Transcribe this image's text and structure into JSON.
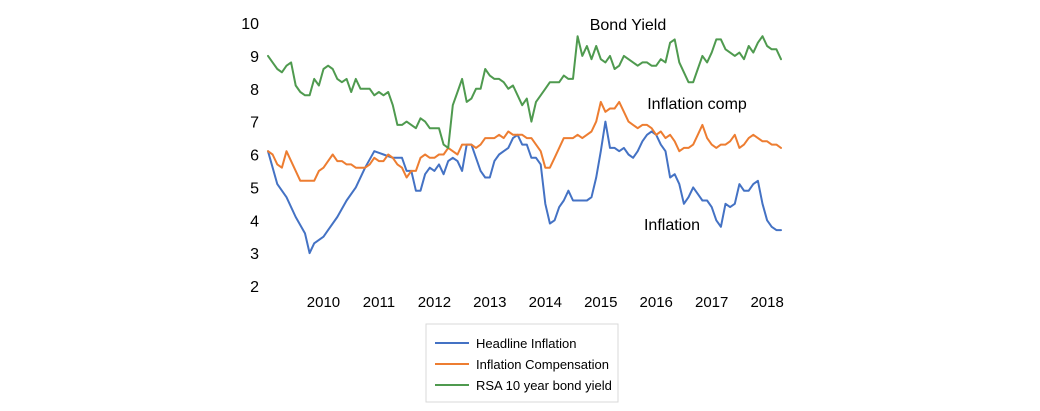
{
  "chart_data": {
    "type": "line",
    "title": "",
    "xlabel": "",
    "ylabel": "",
    "ylim": [
      2,
      10
    ],
    "yticks": [
      2,
      3,
      4,
      5,
      6,
      7,
      8,
      9,
      10
    ],
    "xlim": [
      2009.5,
      2018.75
    ],
    "year_labels": [
      "2010",
      "2011",
      "2012",
      "2013",
      "2014",
      "2015",
      "2016",
      "2017",
      "2018"
    ],
    "grid": false,
    "legend_position": "bottom",
    "annotations": [
      {
        "text": "Bond Yield",
        "series": "RSA 10 year bond yield"
      },
      {
        "text": "Inflation comp",
        "series": "Inflation Compensation"
      },
      {
        "text": "Inflation",
        "series": "Headline Inflation"
      }
    ],
    "series": [
      {
        "name": "Headline Inflation",
        "color": "#4472c4",
        "x": [
          2009.5,
          2009.667,
          2009.833,
          2010.0,
          2010.167,
          2010.25,
          2010.333,
          2010.5,
          2010.583,
          2010.75,
          2010.917,
          2011.083,
          2011.25,
          2011.417,
          2011.583,
          2011.75,
          2011.917,
          2012.0,
          2012.083,
          2012.167,
          2012.25,
          2012.333,
          2012.417,
          2012.5,
          2012.583,
          2012.667,
          2012.75,
          2012.833,
          2012.917,
          2013.0,
          2013.083,
          2013.167,
          2013.25,
          2013.333,
          2013.417,
          2013.5,
          2013.583,
          2013.667,
          2013.75,
          2013.833,
          2013.917,
          2014.0,
          2014.083,
          2014.167,
          2014.25,
          2014.333,
          2014.417,
          2014.5,
          2014.583,
          2014.667,
          2014.75,
          2014.833,
          2014.917,
          2015.0,
          2015.083,
          2015.25,
          2015.333,
          2015.417,
          2015.5,
          2015.583,
          2015.667,
          2015.75,
          2015.833,
          2015.917,
          2016.0,
          2016.083,
          2016.167,
          2016.25,
          2016.333,
          2016.417,
          2016.5,
          2016.583,
          2016.667,
          2016.75,
          2016.833,
          2016.917,
          2017.0,
          2017.083,
          2017.167,
          2017.25,
          2017.333,
          2017.417,
          2017.5,
          2017.583,
          2017.667,
          2017.75,
          2017.833,
          2017.917,
          2018.0,
          2018.083,
          2018.167,
          2018.25,
          2018.333,
          2018.417,
          2018.5,
          2018.583,
          2018.667,
          2018.75
        ],
        "values": [
          6.1,
          5.1,
          4.7,
          4.1,
          3.6,
          3.0,
          3.3,
          3.5,
          3.7,
          4.1,
          4.6,
          5.0,
          5.6,
          6.1,
          6.0,
          5.9,
          5.9,
          5.5,
          5.5,
          4.9,
          4.9,
          5.4,
          5.6,
          5.5,
          5.7,
          5.4,
          5.8,
          5.9,
          5.8,
          5.5,
          6.3,
          6.3,
          5.9,
          5.5,
          5.3,
          5.3,
          5.8,
          6.0,
          6.1,
          6.2,
          6.5,
          6.6,
          6.3,
          6.3,
          5.9,
          5.9,
          5.7,
          4.5,
          3.9,
          4.0,
          4.4,
          4.6,
          4.9,
          4.6,
          4.6,
          4.6,
          4.7,
          5.3,
          6.1,
          7.0,
          6.2,
          6.2,
          6.1,
          6.2,
          6.0,
          5.9,
          6.1,
          6.4,
          6.6,
          6.7,
          6.6,
          6.3,
          6.1,
          5.3,
          5.4,
          5.1,
          4.5,
          4.7,
          5.0,
          4.8,
          4.6,
          4.6,
          4.4,
          4.0,
          3.8,
          4.5,
          4.4,
          4.5,
          5.1,
          4.9,
          4.9,
          5.1,
          5.2,
          4.5,
          4.0,
          3.8,
          3.7,
          3.7
        ]
      },
      {
        "name": "Inflation Compensation",
        "color": "#ed7d31",
        "x": [
          2009.5,
          2009.583,
          2009.667,
          2009.75,
          2009.833,
          2009.917,
          2010.0,
          2010.083,
          2010.167,
          2010.25,
          2010.333,
          2010.417,
          2010.5,
          2010.583,
          2010.667,
          2010.75,
          2010.833,
          2010.917,
          2011.0,
          2011.083,
          2011.167,
          2011.25,
          2011.333,
          2011.417,
          2011.5,
          2011.583,
          2011.667,
          2011.75,
          2011.833,
          2011.917,
          2012.0,
          2012.083,
          2012.167,
          2012.25,
          2012.333,
          2012.417,
          2012.5,
          2012.583,
          2012.667,
          2012.75,
          2012.833,
          2012.917,
          2013.0,
          2013.083,
          2013.167,
          2013.25,
          2013.333,
          2013.417,
          2013.5,
          2013.583,
          2013.667,
          2013.75,
          2013.833,
          2013.917,
          2014.0,
          2014.083,
          2014.167,
          2014.25,
          2014.333,
          2014.417,
          2014.5,
          2014.583,
          2014.667,
          2014.75,
          2014.833,
          2014.917,
          2015.0,
          2015.083,
          2015.167,
          2015.25,
          2015.333,
          2015.417,
          2015.5,
          2015.583,
          2015.667,
          2015.75,
          2015.833,
          2015.917,
          2016.0,
          2016.083,
          2016.167,
          2016.25,
          2016.333,
          2016.417,
          2016.5,
          2016.583,
          2016.667,
          2016.75,
          2016.833,
          2016.917,
          2017.0,
          2017.083,
          2017.167,
          2017.25,
          2017.333,
          2017.417,
          2017.5,
          2017.583,
          2017.667,
          2017.75,
          2017.833,
          2017.917,
          2018.0,
          2018.083,
          2018.167,
          2018.25,
          2018.333,
          2018.417,
          2018.5,
          2018.583,
          2018.667,
          2018.75
        ],
        "values": [
          6.1,
          6.0,
          5.7,
          5.6,
          6.1,
          5.8,
          5.5,
          5.2,
          5.2,
          5.2,
          5.2,
          5.5,
          5.6,
          5.8,
          6.0,
          5.8,
          5.8,
          5.7,
          5.7,
          5.6,
          5.6,
          5.6,
          5.7,
          5.9,
          5.8,
          5.8,
          6.0,
          5.9,
          5.7,
          5.6,
          5.3,
          5.5,
          5.5,
          5.9,
          6.0,
          5.9,
          5.9,
          6.0,
          6.0,
          6.2,
          6.1,
          6.0,
          6.3,
          6.3,
          6.3,
          6.2,
          6.3,
          6.5,
          6.5,
          6.5,
          6.6,
          6.5,
          6.7,
          6.6,
          6.6,
          6.6,
          6.5,
          6.5,
          6.3,
          6.1,
          5.6,
          5.6,
          5.9,
          6.2,
          6.5,
          6.5,
          6.5,
          6.6,
          6.5,
          6.6,
          6.7,
          7.0,
          7.6,
          7.3,
          7.4,
          7.4,
          7.6,
          7.3,
          7.0,
          6.9,
          6.8,
          6.9,
          6.9,
          6.8,
          6.6,
          6.7,
          6.5,
          6.6,
          6.4,
          6.1,
          6.2,
          6.2,
          6.3,
          6.6,
          6.9,
          6.5,
          6.3,
          6.2,
          6.3,
          6.3,
          6.4,
          6.6,
          6.2,
          6.3,
          6.5,
          6.6,
          6.5,
          6.4,
          6.4,
          6.3,
          6.3,
          6.2
        ]
      },
      {
        "name": "RSA 10 year bond yield",
        "color": "#4f9a4f",
        "x": [
          2009.5,
          2009.583,
          2009.667,
          2009.75,
          2009.833,
          2009.917,
          2010.0,
          2010.083,
          2010.167,
          2010.25,
          2010.333,
          2010.417,
          2010.5,
          2010.583,
          2010.667,
          2010.75,
          2010.833,
          2010.917,
          2011.0,
          2011.083,
          2011.167,
          2011.25,
          2011.333,
          2011.417,
          2011.5,
          2011.583,
          2011.667,
          2011.75,
          2011.833,
          2011.917,
          2012.0,
          2012.083,
          2012.167,
          2012.25,
          2012.333,
          2012.417,
          2012.5,
          2012.583,
          2012.667,
          2012.75,
          2012.833,
          2012.917,
          2013.0,
          2013.083,
          2013.167,
          2013.25,
          2013.333,
          2013.417,
          2013.5,
          2013.583,
          2013.667,
          2013.75,
          2013.833,
          2013.917,
          2014.0,
          2014.083,
          2014.167,
          2014.25,
          2014.333,
          2014.417,
          2014.5,
          2014.583,
          2014.667,
          2014.75,
          2014.833,
          2014.917,
          2015.0,
          2015.083,
          2015.167,
          2015.25,
          2015.333,
          2015.417,
          2015.5,
          2015.583,
          2015.667,
          2015.75,
          2015.833,
          2015.917,
          2016.0,
          2016.083,
          2016.167,
          2016.25,
          2016.333,
          2016.417,
          2016.5,
          2016.583,
          2016.667,
          2016.75,
          2016.833,
          2016.917,
          2017.0,
          2017.083,
          2017.167,
          2017.25,
          2017.333,
          2017.417,
          2017.5,
          2017.583,
          2017.667,
          2017.75,
          2017.833,
          2017.917,
          2018.0,
          2018.083,
          2018.167,
          2018.25,
          2018.333,
          2018.417,
          2018.5,
          2018.583,
          2018.667,
          2018.75
        ],
        "values": [
          9.0,
          8.8,
          8.6,
          8.5,
          8.7,
          8.8,
          8.1,
          7.9,
          7.8,
          7.8,
          8.3,
          8.1,
          8.6,
          8.7,
          8.6,
          8.3,
          8.2,
          8.3,
          7.9,
          8.3,
          8.0,
          8.0,
          8.0,
          7.8,
          7.9,
          7.8,
          7.9,
          7.5,
          6.9,
          6.9,
          7.0,
          6.9,
          6.8,
          7.1,
          7.0,
          6.8,
          6.8,
          6.8,
          6.3,
          6.2,
          7.5,
          7.9,
          8.3,
          7.6,
          7.7,
          8.0,
          8.0,
          8.6,
          8.4,
          8.3,
          8.3,
          8.2,
          8.0,
          8.1,
          7.8,
          7.5,
          7.7,
          7.0,
          7.6,
          7.8,
          8.0,
          8.2,
          8.2,
          8.2,
          8.4,
          8.3,
          8.3,
          9.6,
          9.0,
          9.3,
          8.9,
          9.3,
          8.9,
          8.8,
          9.0,
          8.6,
          8.7,
          9.0,
          8.9,
          8.8,
          8.7,
          8.8,
          8.8,
          8.7,
          8.7,
          8.9,
          8.8,
          9.4,
          9.5,
          8.8,
          8.5,
          8.2,
          8.2,
          8.6,
          9.0,
          8.8,
          9.1,
          9.5,
          9.5,
          9.2,
          9.1,
          9.0,
          9.1,
          8.9,
          9.3,
          9.1,
          9.4,
          9.6,
          9.3,
          9.2,
          9.2,
          8.9
        ]
      }
    ]
  }
}
